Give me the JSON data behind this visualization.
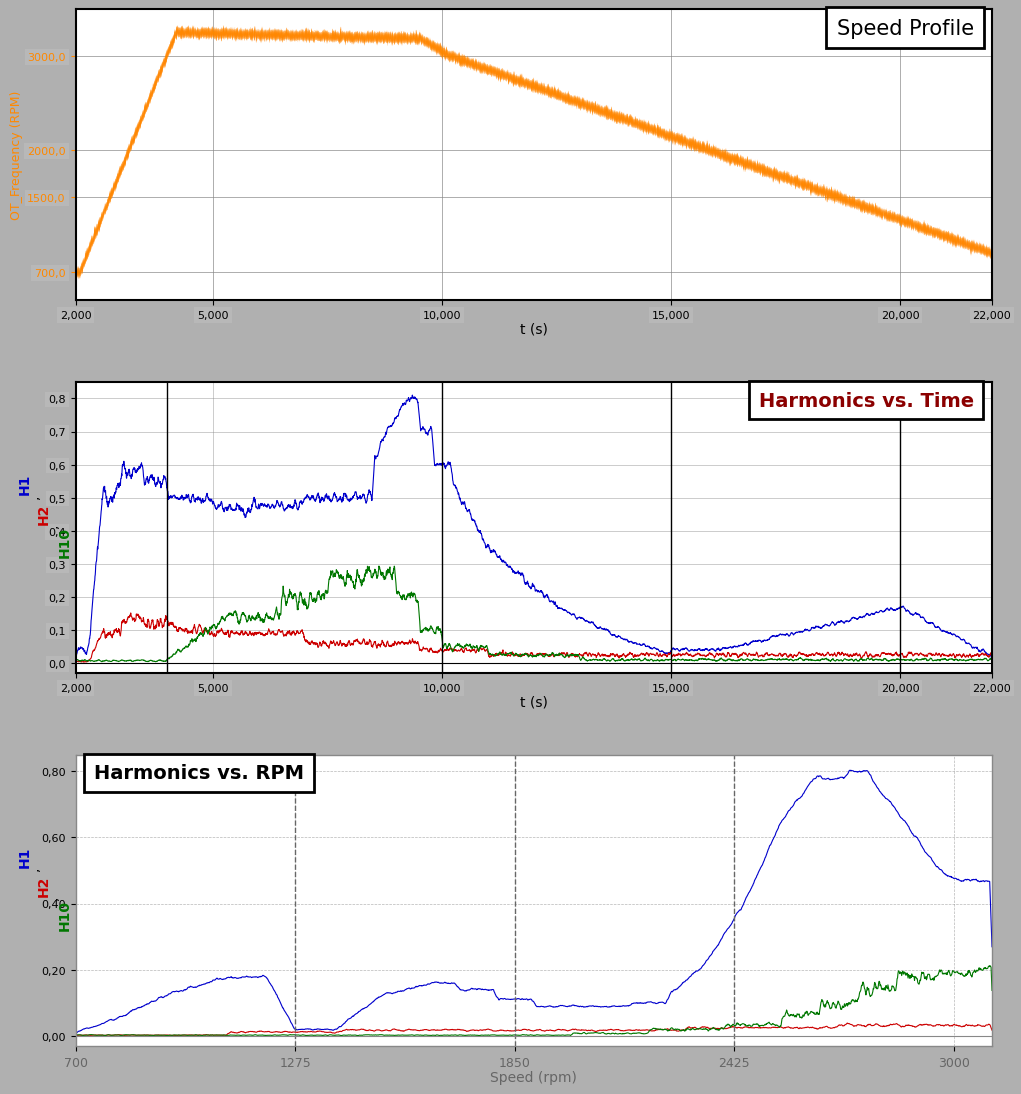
{
  "speed_profile": {
    "title": "Speed Profile",
    "xlabel": "t (s)",
    "ylabel": "OT_Frequency (RPM)",
    "ylabel_color": "#FF8800",
    "title_fontsize": 15,
    "line_color": "#FF8800",
    "xlim": [
      2000,
      22000
    ],
    "ylim": [
      400,
      3500
    ],
    "xticks": [
      2000,
      5000,
      10000,
      15000,
      20000,
      22000
    ],
    "yticks": [
      700,
      1500,
      2000,
      3000
    ],
    "ytick_labels": [
      "700,0",
      "1500,0",
      "2000,0",
      "3000,0"
    ],
    "bg_color": "#ffffff"
  },
  "harmonics_time": {
    "title": "Harmonics vs. Time",
    "xlabel": "t (s)",
    "ylabel_H1_color": "#0000CC",
    "ylabel_H2_color": "#CC0000",
    "ylabel_H10_color": "#007700",
    "title_fontsize": 14,
    "xlim": [
      2000,
      22000
    ],
    "ylim": [
      -0.03,
      0.85
    ],
    "xticks": [
      2000,
      5000,
      10000,
      15000,
      20000,
      22000
    ],
    "yticks": [
      0.0,
      0.1,
      0.2,
      0.3,
      0.4,
      0.5,
      0.6,
      0.7,
      0.8
    ],
    "ytick_labels": [
      "0,0",
      "0,1",
      "0,2",
      "0,3",
      "0,4",
      "0,5",
      "0,6",
      "0,7",
      "0,8"
    ],
    "vlines": [
      4000,
      10000,
      15000,
      20000
    ],
    "colors": {
      "H1": "#0000CC",
      "H2": "#CC0000",
      "H10": "#007700"
    },
    "bg_color": "#ffffff"
  },
  "harmonics_rpm": {
    "title": "Harmonics vs. RPM",
    "xlabel": "Speed (rpm)",
    "ylabel_H1_color": "#0000CC",
    "ylabel_H2_color": "#CC0000",
    "ylabel_H10_color": "#007700",
    "title_fontsize": 14,
    "xlim": [
      700,
      3100
    ],
    "ylim": [
      -0.03,
      0.85
    ],
    "xticks": [
      700,
      1275,
      1850,
      2425,
      3000
    ],
    "yticks": [
      0.0,
      0.2,
      0.4,
      0.6,
      0.8
    ],
    "ytick_labels": [
      "0,00",
      "0,20",
      "0,40",
      "0,60",
      "0,80"
    ],
    "vlines": [
      1275,
      1850,
      2425
    ],
    "colors": {
      "H1": "#0000CC",
      "H2": "#CC0000",
      "H10": "#007700"
    },
    "bg_color": "#ffffff"
  }
}
